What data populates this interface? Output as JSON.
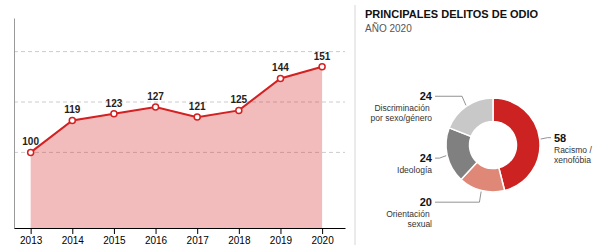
{
  "chart_data": [
    {
      "type": "area",
      "x": [
        2013,
        2014,
        2015,
        2016,
        2017,
        2018,
        2019,
        2020
      ],
      "values": [
        100,
        119,
        123,
        127,
        121,
        125,
        144,
        151
      ],
      "color": "#d42020",
      "marker": "circle",
      "xlim": [
        2012.6,
        2020.55
      ],
      "xticks": [
        2013,
        2014,
        2015,
        2016,
        2017,
        2018,
        2019,
        2020
      ],
      "ylim": [
        55,
        180
      ],
      "yticks": [
        100,
        130,
        160
      ],
      "grid": true,
      "tick_labels": "x",
      "data_labels": true
    },
    {
      "type": "pie",
      "title": "PRINCIPALES DELITOS DE ODIO",
      "subtitle": "AÑO 2020",
      "categories": [
        "Racismo / xenofóbia",
        "Orientación sexual",
        "Ideología",
        "Discriminación por sexo/género"
      ],
      "values": [
        58,
        20,
        24,
        24
      ],
      "colors": [
        "#cc2222",
        "#e08878",
        "#808080",
        "#c8c8c8"
      ],
      "data_labels": true
    }
  ]
}
